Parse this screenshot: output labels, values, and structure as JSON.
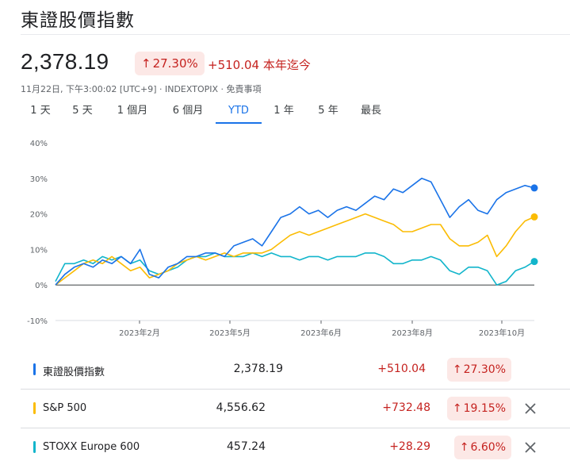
{
  "header": {
    "title": "東證股價指數",
    "price": "2,378.19",
    "pct_change": "27.30%",
    "abs_change": "+510.04 本年迄今",
    "meta": "11月22日, 下午3:00:02 [UTC+9] · INDEXTOPIX · 免責事項"
  },
  "ranges": [
    {
      "label": "1 天",
      "active": false
    },
    {
      "label": "5 天",
      "active": false
    },
    {
      "label": "1 個月",
      "active": false
    },
    {
      "label": "6 個月",
      "active": false
    },
    {
      "label": "YTD",
      "active": true
    },
    {
      "label": "1 年",
      "active": false
    },
    {
      "label": "5 年",
      "active": false
    },
    {
      "label": "最長",
      "active": false
    }
  ],
  "colors": {
    "topix": "#1a73e8",
    "sp500": "#fbbc04",
    "stoxx": "#12b5cb",
    "up": "#c5221f",
    "up_bg": "#fce8e6"
  },
  "chart_data": {
    "type": "line",
    "ylim": [
      -10,
      40
    ],
    "y_ticks": [
      "40%",
      "30%",
      "20%",
      "10%",
      "0%",
      "-10%"
    ],
    "x_ticks": [
      "2023年2月",
      "2023年5月",
      "2023年6月",
      "2023年8月",
      "2023年10月"
    ],
    "grid": false,
    "series": [
      {
        "name": "東證股價指數",
        "color": "#1a73e8",
        "values": [
          0,
          3,
          5,
          6,
          5,
          7,
          6,
          8,
          6,
          10,
          3,
          2,
          5,
          6,
          8,
          8,
          9,
          9,
          8,
          11,
          12,
          13,
          11,
          15,
          19,
          20,
          22,
          20,
          21,
          19,
          21,
          22,
          21,
          23,
          25,
          24,
          27,
          26,
          28,
          30,
          29,
          24,
          19,
          22,
          24,
          21,
          20,
          24,
          26,
          27,
          28,
          27.3
        ]
      },
      {
        "name": "S&P 500",
        "color": "#fbbc04",
        "values": [
          0,
          2,
          4,
          6,
          7,
          6,
          8,
          6,
          4,
          5,
          2,
          3,
          4,
          6,
          7,
          8,
          7,
          8,
          9,
          8,
          9,
          9,
          9,
          10,
          12,
          14,
          15,
          14,
          15,
          16,
          17,
          18,
          19,
          20,
          19,
          18,
          17,
          15,
          15,
          16,
          17,
          17,
          13,
          11,
          11,
          12,
          14,
          8,
          11,
          15,
          18,
          19.15
        ]
      },
      {
        "name": "STOXX Europe 600",
        "color": "#12b5cb",
        "values": [
          1,
          6,
          6,
          7,
          6,
          8,
          7,
          8,
          6,
          7,
          4,
          3,
          4,
          5,
          7,
          8,
          8,
          9,
          8,
          8,
          8,
          9,
          8,
          9,
          8,
          8,
          7,
          8,
          8,
          7,
          8,
          8,
          8,
          9,
          9,
          8,
          6,
          6,
          7,
          7,
          8,
          7,
          4,
          3,
          5,
          5,
          4,
          0,
          1,
          4,
          5,
          6.6
        ]
      }
    ]
  },
  "comparisons": [
    {
      "name": "東證股價指數",
      "price": "2,378.19",
      "change": "+510.04",
      "pct": "27.30%",
      "color": "#1a73e8",
      "removable": false
    },
    {
      "name": "S&P 500",
      "price": "4,556.62",
      "change": "+732.48",
      "pct": "19.15%",
      "color": "#fbbc04",
      "removable": true
    },
    {
      "name": "STOXX Europe 600",
      "price": "457.24",
      "change": "+28.29",
      "pct": "6.60%",
      "color": "#12b5cb",
      "removable": true
    }
  ]
}
